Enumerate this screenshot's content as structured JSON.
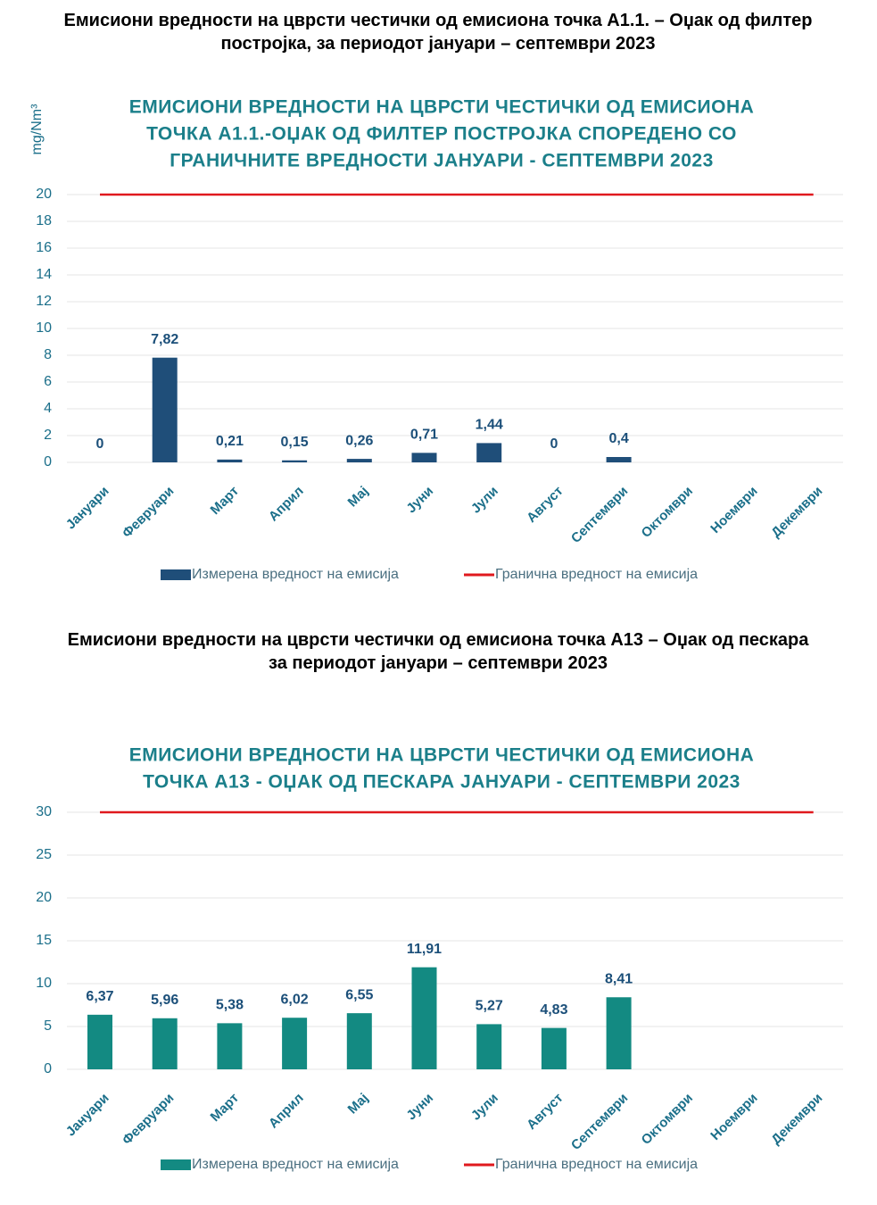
{
  "chart_data": [
    {
      "type": "bar",
      "caption": "Емисиони вредности на цврсти честички од емисиона точка А1.1. – Оџак од филтер постројка, за периодот јануари – септември 2023",
      "title": [
        "ЕМИСИОНИ ВРЕДНОСТИ НА ЦВРСТИ ЧЕСТИЧКИ ОД ЕМИСИОНА",
        "ТОЧКА А1.1.-ОЏАК ОД ФИЛТЕР ПОСТРОЈКА СПОРЕДЕНО СО",
        "ГРАНИЧНИТЕ ВРЕДНОСТИ ЈАНУАРИ - СЕПТЕМВРИ 2023"
      ],
      "y_label": "mg/Nm³",
      "categories": [
        "Јануари",
        "Февруари",
        "Март",
        "Април",
        "Мај",
        "Јуни",
        "Јули",
        "Август",
        "Септември",
        "Октомври",
        "Ноември",
        "Декември"
      ],
      "series": [
        {
          "name": "Измерена вредност на емисија",
          "type": "bar",
          "color": "#1f4e79",
          "values": [
            0,
            7.82,
            0.21,
            0.15,
            0.26,
            0.71,
            1.44,
            0,
            0.4,
            null,
            null,
            null
          ],
          "value_labels": [
            "0",
            "7,82",
            "0,21",
            "0,15",
            "0,26",
            "0,71",
            "1,44",
            "0",
            "0,4",
            null,
            null,
            null
          ]
        },
        {
          "name": "Гранична вредност на емисија",
          "type": "line",
          "color": "#e0191e",
          "values": [
            20,
            20,
            20,
            20,
            20,
            20,
            20,
            20,
            20,
            20,
            20,
            20
          ]
        }
      ],
      "ylim": [
        0,
        20
      ],
      "yticks": [
        0,
        2,
        4,
        6,
        8,
        10,
        12,
        14,
        16,
        18,
        20
      ],
      "grid": true
    },
    {
      "type": "bar",
      "caption": "Емисиони вредности на цврсти честички од емисиона точка А13 – Оџак од пескара за периодот јануари – септември 2023",
      "title": [
        "ЕМИСИОНИ ВРЕДНОСТИ НА ЦВРСТИ ЧЕСТИЧКИ ОД ЕМИСИОНА",
        "ТОЧКА А13 - ОЏАК ОД ПЕСКАРА ЈАНУАРИ - СЕПТЕМВРИ 2023"
      ],
      "categories": [
        "Јануари",
        "Февруари",
        "Март",
        "Април",
        "Мај",
        "Јуни",
        "Јули",
        "Август",
        "Септември",
        "Октомври",
        "Ноември",
        "Декември"
      ],
      "series": [
        {
          "name": "Измерена вредност на емисија",
          "type": "bar",
          "color": "#138a82",
          "values": [
            6.37,
            5.96,
            5.38,
            6.02,
            6.55,
            11.91,
            5.27,
            4.83,
            8.41,
            null,
            null,
            null
          ],
          "value_labels": [
            "6,37",
            "5,96",
            "5,38",
            "6,02",
            "6,55",
            "11,91",
            "5,27",
            "4,83",
            "8,41",
            null,
            null,
            null
          ]
        },
        {
          "name": "Гранична вредност на емисија",
          "type": "line",
          "color": "#e0191e",
          "values": [
            30,
            30,
            30,
            30,
            30,
            30,
            30,
            30,
            30,
            30,
            30,
            30
          ]
        }
      ],
      "ylim": [
        0,
        30
      ],
      "yticks": [
        0,
        5,
        10,
        15,
        20,
        25,
        30
      ],
      "grid": true
    }
  ]
}
